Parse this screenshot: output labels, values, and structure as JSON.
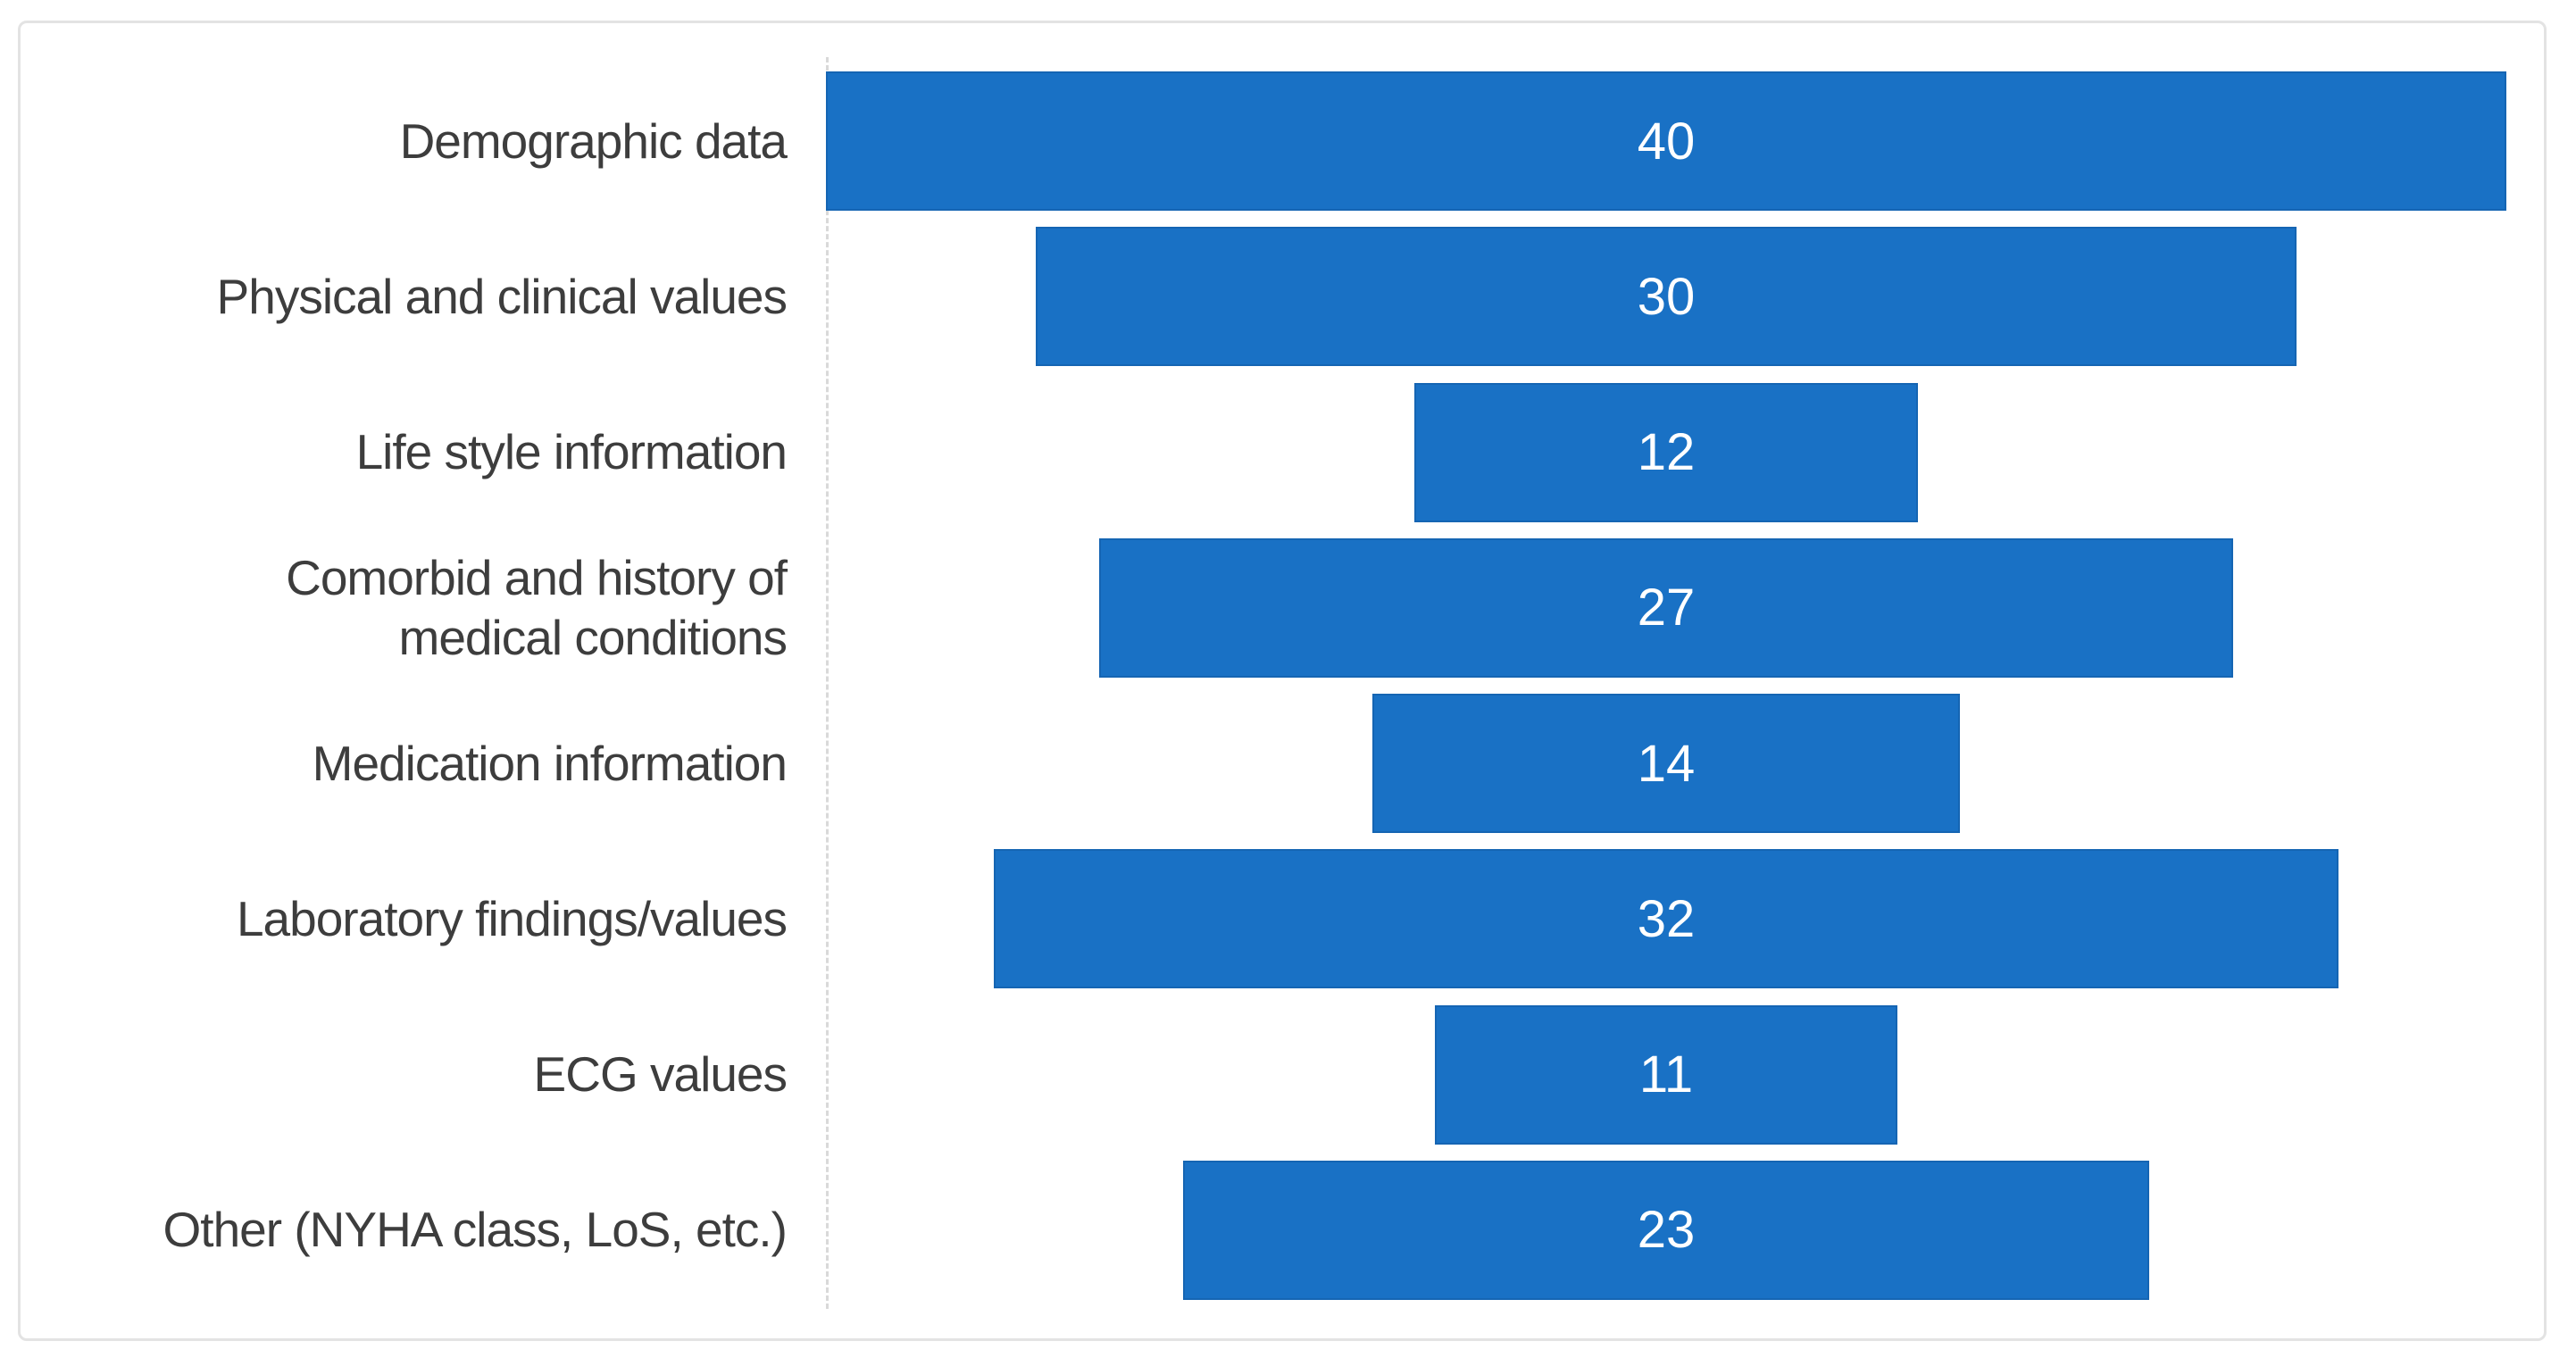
{
  "chart_data": {
    "type": "bar",
    "variant": "funnel-centered-horizontal",
    "title": "",
    "xlabel": "",
    "ylabel": "",
    "categories": [
      "Demographic data",
      "Physical and clinical values",
      "Life style information",
      "Comorbid and history of\nmedical conditions",
      "Medication information",
      "Laboratory findings/values",
      "ECG values",
      "Other (NYHA class, LoS, etc.)"
    ],
    "values": [
      40,
      30,
      12,
      27,
      14,
      32,
      11,
      23
    ],
    "value_axis_max": 40,
    "grid": false,
    "legend": "none",
    "data_labels": "centered-inside-bars",
    "colors": {
      "bar_fill": "#1971c5",
      "bar_edge": "#1565b3",
      "value_label": "#ffffff",
      "category_label": "#3d3d3d",
      "axis_line": "#d9d9d9",
      "frame_border": "#e3e3e3",
      "background": "#ffffff"
    }
  }
}
